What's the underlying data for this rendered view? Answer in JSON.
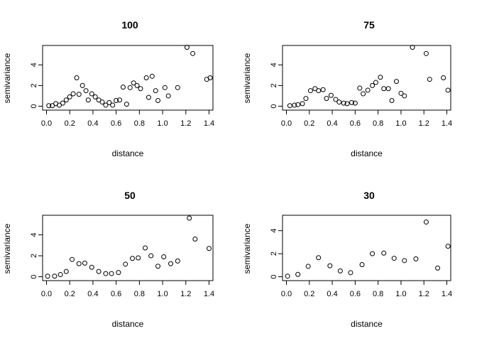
{
  "chart_data": [
    {
      "type": "scatter",
      "title": "100",
      "xlabel": "distance",
      "ylabel": "semivariance",
      "xlim": [
        0.0,
        1.4
      ],
      "ylim": [
        0,
        5.5
      ],
      "xticks": [
        "0.0",
        "0.2",
        "0.4",
        "0.6",
        "0.8",
        "1.0",
        "1.2",
        "1.4"
      ],
      "yticks": [
        "0",
        "2",
        "4"
      ],
      "x": [
        0.02,
        0.05,
        0.08,
        0.11,
        0.14,
        0.17,
        0.2,
        0.23,
        0.26,
        0.28,
        0.31,
        0.34,
        0.36,
        0.39,
        0.42,
        0.45,
        0.48,
        0.51,
        0.54,
        0.57,
        0.6,
        0.63,
        0.66,
        0.69,
        0.72,
        0.75,
        0.78,
        0.81,
        0.86,
        0.88,
        0.91,
        0.94,
        0.96,
        1.02,
        1.05,
        1.13,
        1.21,
        1.26,
        1.38,
        1.41
      ],
      "y": [
        0.05,
        0.05,
        0.25,
        0.1,
        0.3,
        0.6,
        0.9,
        1.2,
        2.75,
        1.15,
        2.0,
        1.5,
        0.6,
        1.2,
        0.9,
        0.6,
        0.4,
        0.1,
        0.35,
        0.1,
        0.55,
        0.6,
        1.85,
        0.2,
        1.8,
        2.25,
        2.0,
        1.7,
        2.75,
        0.85,
        2.9,
        1.5,
        0.55,
        1.8,
        1.0,
        1.8,
        5.7,
        5.1,
        2.6,
        2.75
      ]
    },
    {
      "type": "scatter",
      "title": "75",
      "xlabel": "distance",
      "ylabel": "semivariance",
      "xlim": [
        0.0,
        1.4
      ],
      "ylim": [
        0,
        5.5
      ],
      "xticks": [
        "0.0",
        "0.2",
        "0.4",
        "0.6",
        "0.8",
        "1.0",
        "1.2",
        "1.4"
      ],
      "yticks": [
        "0",
        "2",
        "4"
      ],
      "x": [
        0.03,
        0.07,
        0.1,
        0.14,
        0.17,
        0.21,
        0.25,
        0.28,
        0.32,
        0.35,
        0.39,
        0.43,
        0.46,
        0.5,
        0.53,
        0.57,
        0.6,
        0.64,
        0.67,
        0.71,
        0.75,
        0.78,
        0.82,
        0.85,
        0.89,
        0.92,
        0.96,
        1.0,
        1.03,
        1.1,
        1.22,
        1.25,
        1.37,
        1.41
      ],
      "y": [
        0.05,
        0.1,
        0.15,
        0.25,
        0.75,
        1.5,
        1.7,
        1.5,
        1.6,
        0.75,
        1.05,
        0.65,
        0.4,
        0.3,
        0.25,
        0.35,
        0.3,
        1.75,
        1.2,
        1.55,
        2.0,
        2.3,
        2.8,
        1.7,
        1.7,
        0.55,
        2.4,
        1.25,
        1.0,
        5.7,
        5.1,
        2.6,
        2.75,
        1.55
      ]
    },
    {
      "type": "scatter",
      "title": "50",
      "xlabel": "distance",
      "ylabel": "semivariance",
      "xlim": [
        0.0,
        1.4
      ],
      "ylim": [
        0,
        5.5
      ],
      "xticks": [
        "0.0",
        "0.2",
        "0.4",
        "0.6",
        "0.8",
        "1.0",
        "1.2",
        "1.4"
      ],
      "yticks": [
        "0",
        "2",
        "4"
      ],
      "x": [
        0.01,
        0.07,
        0.12,
        0.17,
        0.22,
        0.28,
        0.33,
        0.39,
        0.45,
        0.51,
        0.56,
        0.62,
        0.68,
        0.74,
        0.79,
        0.85,
        0.9,
        0.96,
        1.01,
        1.07,
        1.13,
        1.23,
        1.28,
        1.4
      ],
      "y": [
        0.05,
        0.05,
        0.2,
        0.5,
        1.65,
        1.25,
        1.3,
        0.9,
        0.5,
        0.3,
        0.3,
        0.4,
        1.2,
        1.75,
        1.8,
        2.75,
        2.0,
        1.0,
        1.9,
        1.25,
        1.5,
        5.6,
        3.6,
        2.7
      ]
    },
    {
      "type": "scatter",
      "title": "30",
      "xlabel": "distance",
      "ylabel": "semivariance",
      "xlim": [
        0.0,
        1.4
      ],
      "ylim": [
        0,
        5.0
      ],
      "xticks": [
        "0.0",
        "0.2",
        "0.4",
        "0.6",
        "0.8",
        "1.0",
        "1.2",
        "1.4"
      ],
      "yticks": [
        "0",
        "2",
        "4"
      ],
      "x": [
        0.01,
        0.1,
        0.19,
        0.28,
        0.38,
        0.47,
        0.56,
        0.66,
        0.75,
        0.85,
        0.94,
        1.03,
        1.13,
        1.22,
        1.32,
        1.41
      ],
      "y": [
        0.05,
        0.2,
        0.9,
        1.65,
        0.95,
        0.5,
        0.35,
        1.05,
        2.0,
        2.05,
        1.6,
        1.4,
        1.55,
        4.75,
        0.75,
        2.65
      ]
    }
  ]
}
